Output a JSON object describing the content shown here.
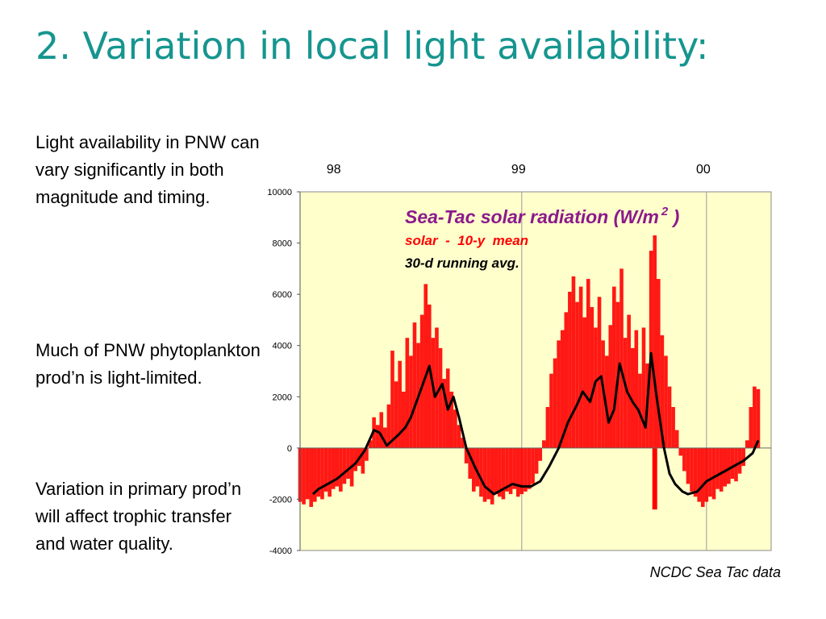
{
  "slide": {
    "title": "2. Variation in local light availability:",
    "bullets": [
      "Light availability in PNW can vary significantly in both magnitude and timing.",
      "Much of PNW phytoplankton prod’n is light-limited.",
      "Variation in primary prod’n will affect trophic transfer and water quality."
    ],
    "source": "NCDC Sea Tac data"
  },
  "chart_data": {
    "type": "bar",
    "title": "Sea-Tac solar radiation (W/m",
    "title_superscript": "2",
    "title_suffix": " )",
    "legend": [
      {
        "label": "solar  -  10-y  mean",
        "color": "#ff0000"
      },
      {
        "label": "30-d running avg.",
        "color": "#000000"
      }
    ],
    "x_top_labels": [
      "98",
      "99",
      "00"
    ],
    "yticks": [
      10000,
      8000,
      6000,
      4000,
      2000,
      0,
      -2000,
      -4000
    ],
    "ylim": [
      -4000,
      10000
    ],
    "xlim": [
      1997.8,
      2000.35
    ],
    "grid": {
      "vertical": true,
      "horizontal": false
    },
    "background": "#ffffcc",
    "bar_color": "#ff0000",
    "line_color": "#000000",
    "running_avg": {
      "x": [
        1997.87,
        1997.9,
        1997.95,
        1998.0,
        1998.05,
        1998.1,
        1998.15,
        1998.2,
        1998.23,
        1998.27,
        1998.3,
        1998.33,
        1998.37,
        1998.4,
        1998.45,
        1998.5,
        1998.53,
        1998.57,
        1998.6,
        1998.63,
        1998.66,
        1998.7,
        1998.75,
        1998.8,
        1998.85,
        1998.9,
        1998.95,
        1999.0,
        1999.05,
        1999.1,
        1999.15,
        1999.2,
        1999.25,
        1999.3,
        1999.33,
        1999.37,
        1999.4,
        1999.43,
        1999.47,
        1999.5,
        1999.53,
        1999.57,
        1999.6,
        1999.63,
        1999.67,
        1999.7,
        1999.73,
        1999.77,
        1999.8,
        1999.83,
        1999.87,
        1999.9,
        1999.95,
        2000.0,
        2000.05,
        2000.1,
        2000.15,
        2000.2,
        2000.25,
        2000.28
      ],
      "y": [
        -1800,
        -1600,
        -1400,
        -1200,
        -900,
        -600,
        -100,
        700,
        600,
        100,
        300,
        500,
        800,
        1200,
        2200,
        3200,
        2000,
        2500,
        1500,
        2000,
        1200,
        0,
        -800,
        -1500,
        -1800,
        -1600,
        -1400,
        -1500,
        -1500,
        -1300,
        -700,
        0,
        1000,
        1700,
        2200,
        1800,
        2600,
        2800,
        1000,
        1500,
        3300,
        2200,
        1800,
        1500,
        800,
        3700,
        2000,
        0,
        -1000,
        -1400,
        -1700,
        -1800,
        -1700,
        -1300,
        -1100,
        -900,
        -700,
        -500,
        -200,
        300
      ]
    },
    "bars": {
      "x": [
        1997.8,
        1997.82,
        1997.84,
        1997.86,
        1997.88,
        1997.9,
        1997.92,
        1997.94,
        1997.96,
        1997.98,
        1998.0,
        1998.02,
        1998.04,
        1998.06,
        1998.08,
        1998.1,
        1998.12,
        1998.14,
        1998.16,
        1998.18,
        1998.2,
        1998.22,
        1998.24,
        1998.26,
        1998.28,
        1998.3,
        1998.32,
        1998.34,
        1998.36,
        1998.38,
        1998.4,
        1998.42,
        1998.44,
        1998.46,
        1998.48,
        1998.5,
        1998.52,
        1998.54,
        1998.56,
        1998.58,
        1998.6,
        1998.62,
        1998.64,
        1998.66,
        1998.68,
        1998.7,
        1998.72,
        1998.74,
        1998.76,
        1998.78,
        1998.8,
        1998.82,
        1998.84,
        1998.86,
        1998.88,
        1998.9,
        1998.92,
        1998.94,
        1998.96,
        1998.98,
        1999.0,
        1999.02,
        1999.04,
        1999.06,
        1999.08,
        1999.1,
        1999.12,
        1999.14,
        1999.16,
        1999.18,
        1999.2,
        1999.22,
        1999.24,
        1999.26,
        1999.28,
        1999.3,
        1999.32,
        1999.34,
        1999.36,
        1999.38,
        1999.4,
        1999.42,
        1999.44,
        1999.46,
        1999.48,
        1999.5,
        1999.52,
        1999.54,
        1999.56,
        1999.58,
        1999.6,
        1999.62,
        1999.64,
        1999.66,
        1999.68,
        1999.7,
        1999.72,
        1999.74,
        1999.76,
        1999.78,
        1999.8,
        1999.82,
        1999.84,
        1999.86,
        1999.88,
        1999.9,
        1999.92,
        1999.94,
        1999.96,
        1999.98,
        2000.0,
        2000.02,
        2000.04,
        2000.06,
        2000.08,
        2000.1,
        2000.12,
        2000.14,
        2000.16,
        2000.18,
        2000.2,
        2000.22,
        2000.24,
        2000.26,
        2000.28
      ],
      "y": [
        -2100,
        -2200,
        -2000,
        -2300,
        -2100,
        -1900,
        -2000,
        -1700,
        -1900,
        -1600,
        -1500,
        -1700,
        -1400,
        -1200,
        -1500,
        -900,
        -700,
        -1000,
        -500,
        300,
        1200,
        900,
        1400,
        800,
        1700,
        3800,
        2600,
        3400,
        2200,
        4300,
        3600,
        4900,
        4100,
        5200,
        6400,
        5600,
        4300,
        4700,
        3900,
        2700,
        3100,
        2200,
        1500,
        900,
        400,
        -600,
        -1200,
        -1700,
        -1500,
        -1900,
        -2100,
        -2000,
        -2200,
        -1800,
        -1900,
        -2000,
        -1700,
        -1800,
        -1600,
        -1900,
        -1800,
        -1700,
        -1600,
        -1400,
        -1000,
        -500,
        300,
        1600,
        2900,
        3500,
        4200,
        4600,
        5300,
        6100,
        6700,
        5700,
        6300,
        5100,
        6600,
        5500,
        4700,
        5900,
        4200,
        3600,
        4800,
        6300,
        5700,
        7000,
        4300,
        5200,
        3900,
        4600,
        2900,
        4700,
        3300,
        7700,
        8300,
        6600,
        4400,
        3600,
        2400,
        1600,
        700,
        -300,
        -900,
        -1400,
        -1700,
        -1900,
        -2100,
        -2300,
        -2100,
        -1900,
        -2000,
        -1600,
        -1700,
        -1500,
        -1400,
        -1200,
        -1300,
        -1000,
        -700,
        300,
        1600,
        2400,
        2300
      ],
      "spike_x": 1999.72,
      "spike_y": -2400
    }
  }
}
